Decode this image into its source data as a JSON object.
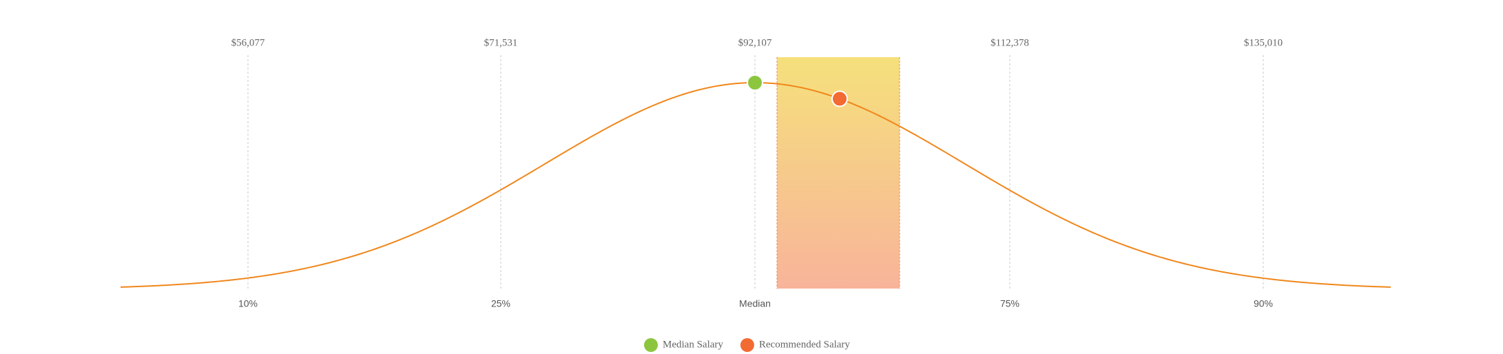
{
  "chart_data": {
    "type": "distribution",
    "categories": [
      "10%",
      "25%",
      "Median",
      "75%",
      "90%"
    ],
    "values": [
      56077,
      71531,
      92107,
      112378,
      135010
    ],
    "value_labels": [
      "$56,077",
      "$71,531",
      "$92,107",
      "$112,378",
      "$135,010"
    ],
    "series": [
      {
        "name": "Median Salary",
        "color": "#8cc63f"
      },
      {
        "name": "Recommended Salary",
        "color": "#f26b32"
      }
    ],
    "line_color": "#f0861a"
  }
}
